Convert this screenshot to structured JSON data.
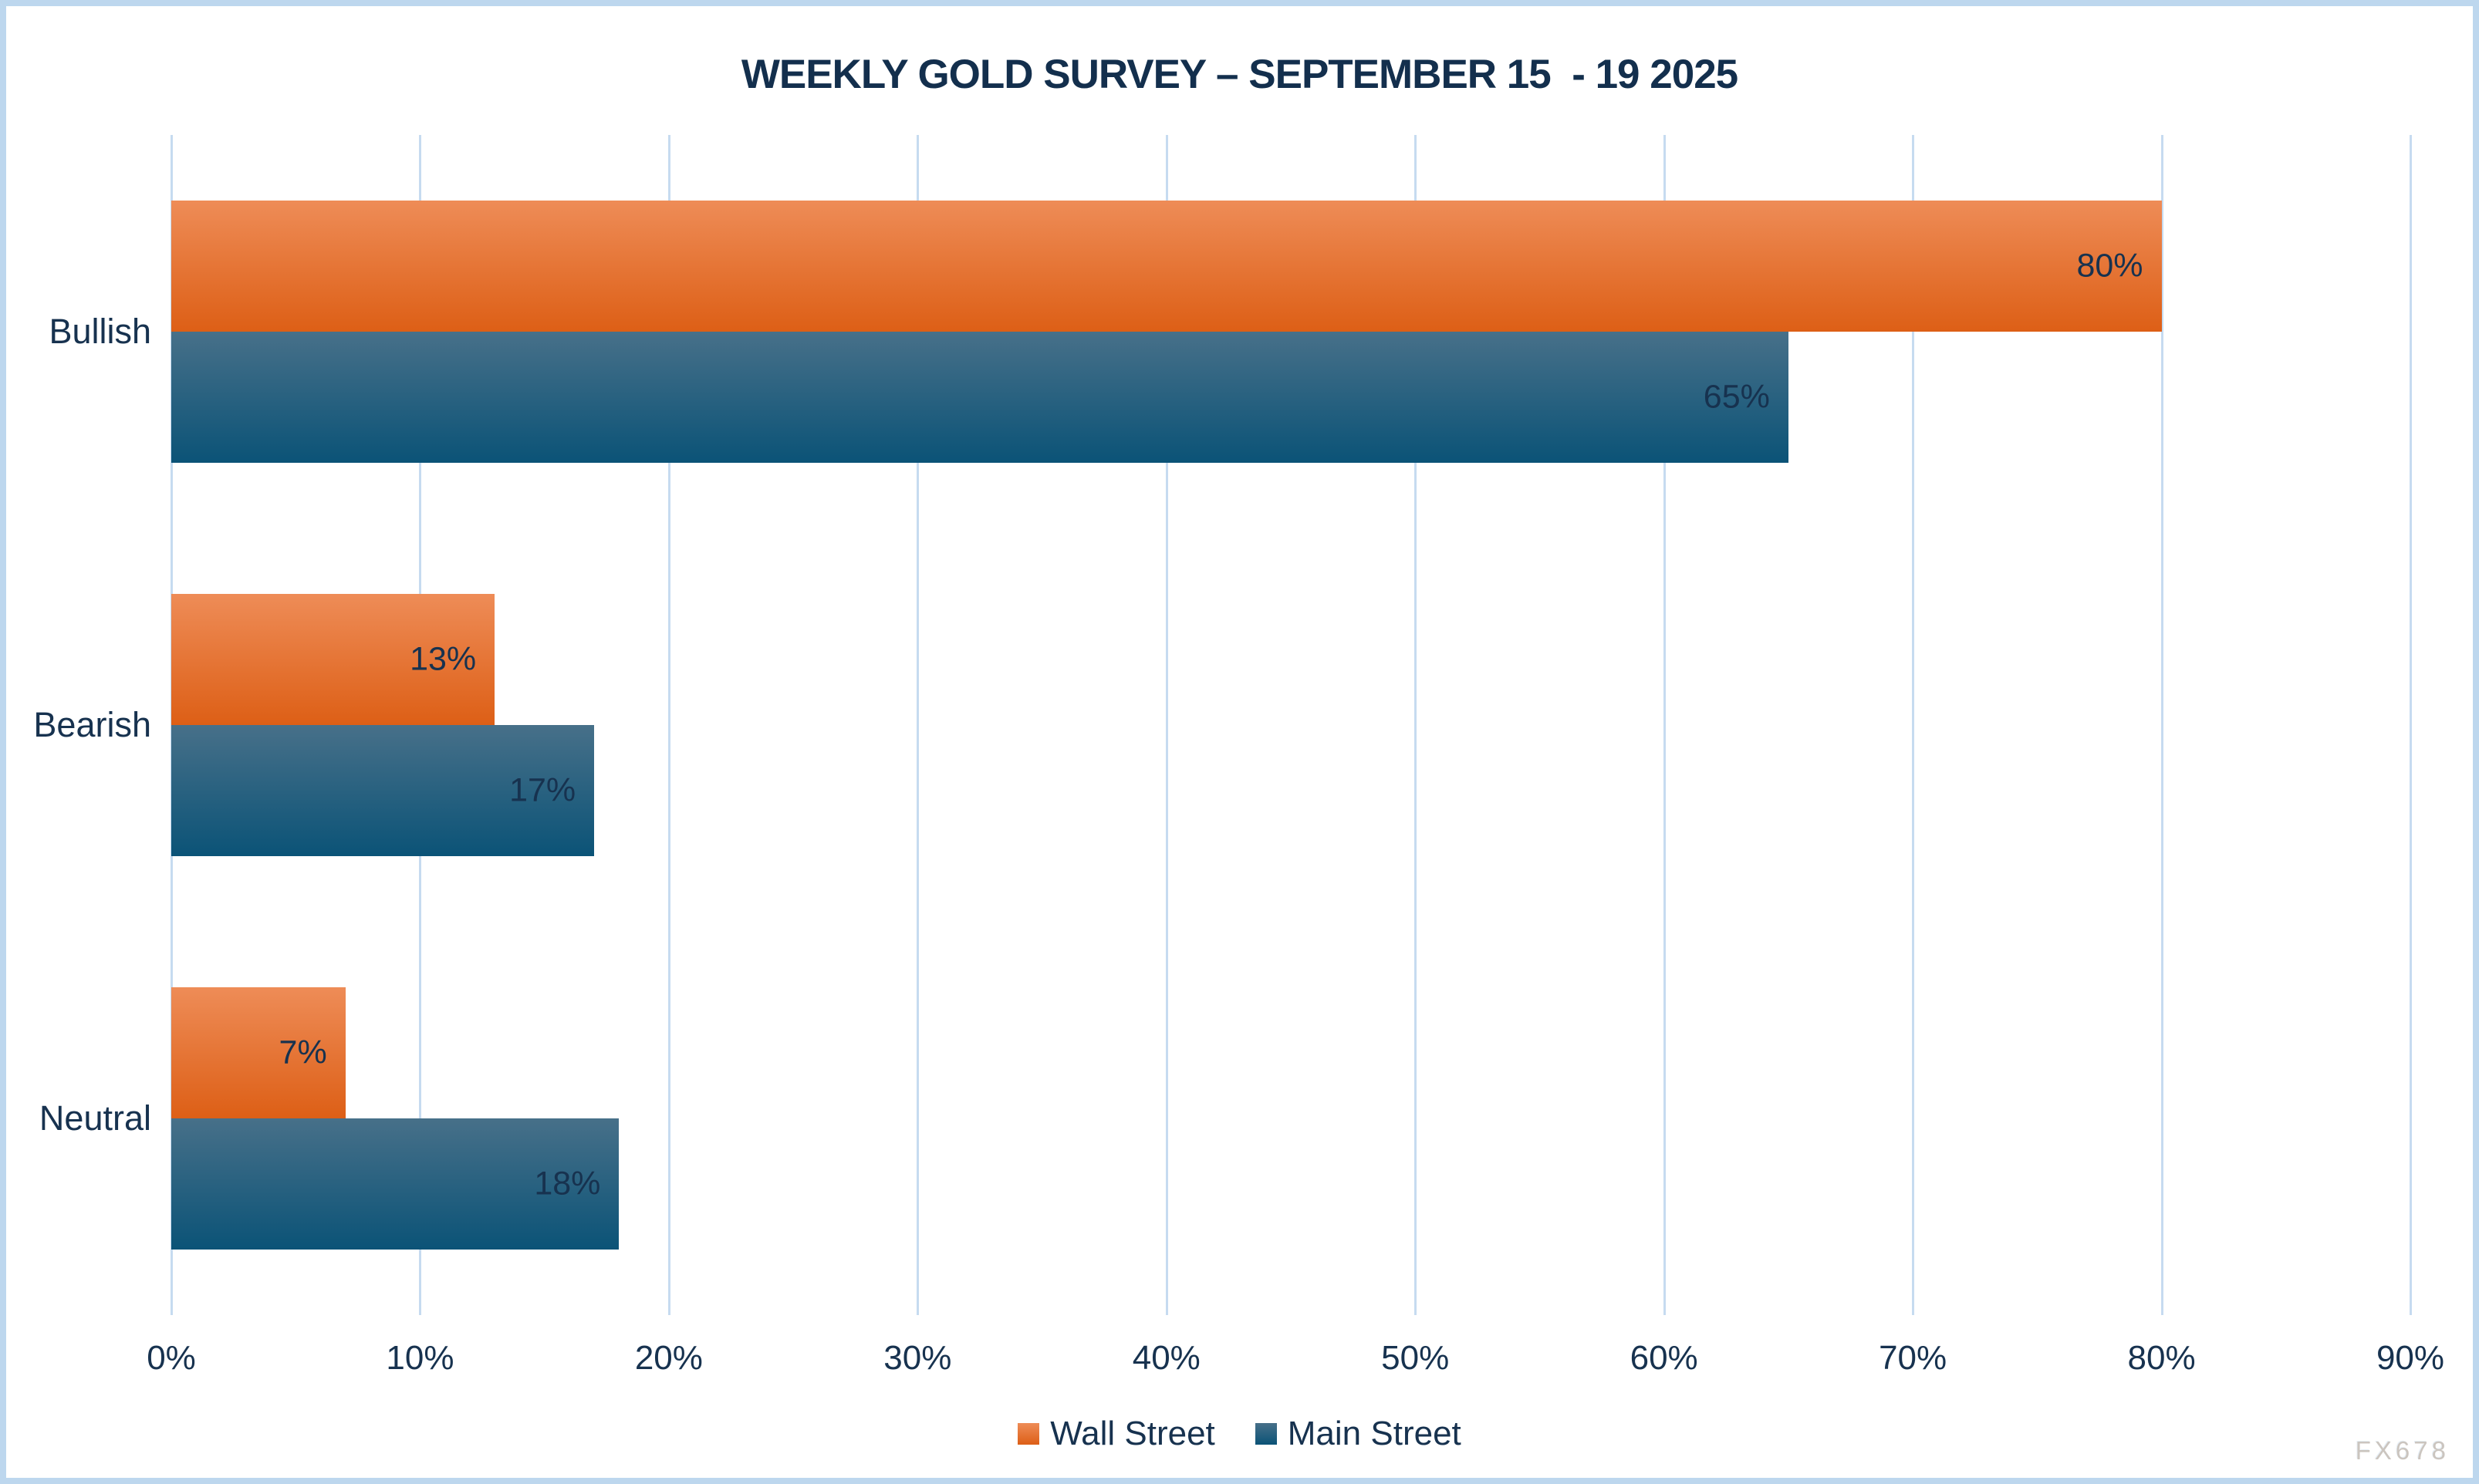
{
  "watermark": "FX678",
  "chart_data": {
    "type": "bar",
    "orientation": "horizontal",
    "title": "WEEKLY GOLD SURVEY – SEPTEMBER 15  - 19 2025",
    "categories": [
      "Bullish",
      "Bearish",
      "Neutral"
    ],
    "series": [
      {
        "name": "Wall Street",
        "values": [
          80,
          13,
          7
        ],
        "value_labels": [
          "80%",
          "13%",
          "7%"
        ],
        "color_top": "#EE8C57",
        "color_bottom": "#DD5F16"
      },
      {
        "name": "Main Street",
        "values": [
          65,
          17,
          18
        ],
        "value_labels": [
          "65%",
          "17%",
          "18%"
        ],
        "color_top": "#477089",
        "color_bottom": "#0B5377"
      }
    ],
    "xlim": [
      0,
      90
    ],
    "x_tick_labels": [
      "0%",
      "10%",
      "20%",
      "30%",
      "40%",
      "50%",
      "60%",
      "70%",
      "80%",
      "90%"
    ],
    "grid": true,
    "legend_position": "bottom",
    "colors": {
      "text": "#17324F",
      "title": "#132F4D",
      "gridline": "#C6DBF0",
      "frame_border": "#BDD7EE",
      "background": "#FFFFFF",
      "watermark": "#CBC5BF"
    }
  }
}
